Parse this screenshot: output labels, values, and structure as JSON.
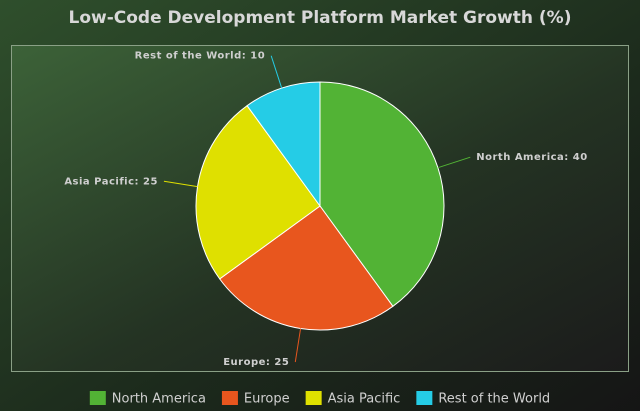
{
  "chart_data": {
    "type": "pie",
    "title": "Low-Code Development Platform Market Growth (%)",
    "categories": [
      "North America",
      "Europe",
      "Asia Pacific",
      "Rest of the World"
    ],
    "values": [
      40,
      25,
      25,
      10
    ],
    "value_labels": [
      "North America: 40",
      "Europe: 25",
      "Asia Pacific: 25",
      "Rest of the World: 10"
    ],
    "colors": [
      "#52b335",
      "#e8561e",
      "#dfe000",
      "#25cce6"
    ],
    "legend": "bottom"
  }
}
